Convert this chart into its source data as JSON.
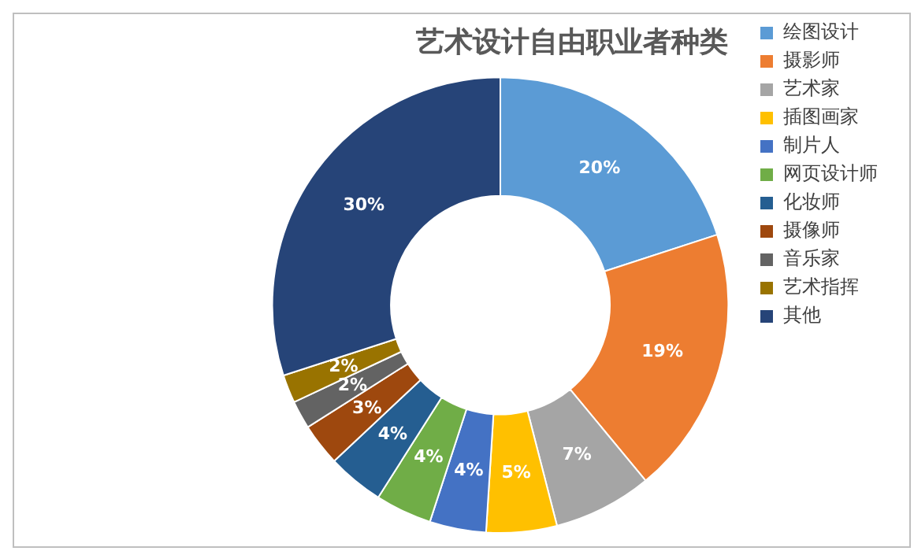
{
  "chart_data": {
    "type": "donut",
    "title": "艺术设计自由职业者种类",
    "categories": [
      "绘图设计",
      "摄影师",
      "艺术家",
      "插图画家",
      "制片人",
      "网页设计师",
      "化妆师",
      "摄像师",
      "音乐家",
      "艺术指挥",
      "其他"
    ],
    "values": [
      20,
      19,
      7,
      5,
      4,
      4,
      4,
      3,
      2,
      2,
      30
    ],
    "value_labels": [
      "20%",
      "19%",
      "7%",
      "5%",
      "4%",
      "4%",
      "4%",
      "3%",
      "2%",
      "2%",
      "30%"
    ],
    "colors": [
      "#5b9bd5",
      "#ed7d31",
      "#a5a5a5",
      "#ffc000",
      "#4472c4",
      "#70ad47",
      "#255e91",
      "#9e480e",
      "#636363",
      "#997300",
      "#264478"
    ],
    "legend": "right"
  }
}
